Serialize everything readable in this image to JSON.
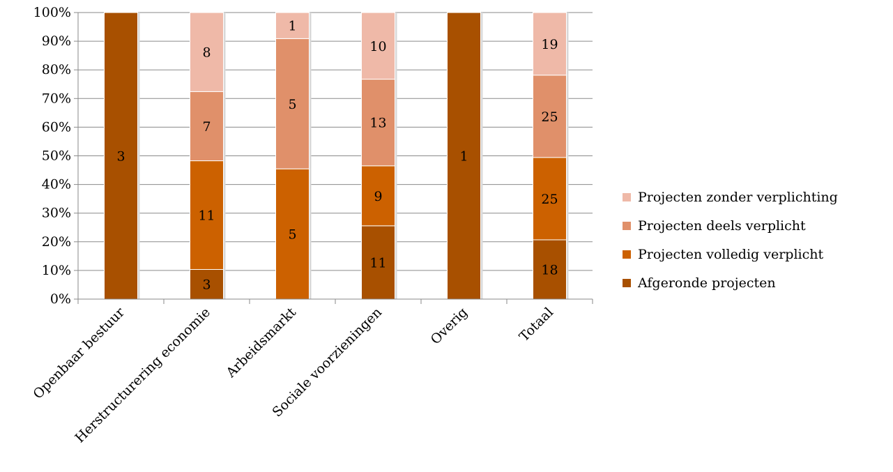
{
  "chart_data": {
    "type": "bar",
    "stacked": true,
    "percent_stacked": true,
    "categories": [
      "Openbaar bestuur",
      "Herstructurering economie",
      "Arbeidsmarkt",
      "Sociale voorzieningen",
      "Overig",
      "Totaal"
    ],
    "series": [
      {
        "name": "Afgeronde projecten",
        "values": [
          3,
          3,
          0,
          11,
          1,
          18
        ],
        "color": "#A85000"
      },
      {
        "name": "Projecten volledig verplicht",
        "values": [
          0,
          11,
          5,
          9,
          0,
          25
        ],
        "color": "#CC6100"
      },
      {
        "name": "Projecten deels verplicht",
        "values": [
          0,
          7,
          5,
          13,
          0,
          25
        ],
        "color": "#E0906A"
      },
      {
        "name": "Projecten zonder verplichting",
        "values": [
          0,
          8,
          1,
          10,
          0,
          19
        ],
        "color": "#EFB9A8"
      }
    ],
    "segment_labels": [
      [
        "3",
        "3",
        "",
        "11",
        "1",
        "18"
      ],
      [
        "",
        "11",
        "5",
        "9",
        "",
        "25"
      ],
      [
        "",
        "7",
        "5",
        "13",
        "",
        "25"
      ],
      [
        "",
        "8",
        "1",
        "10",
        "",
        "19"
      ]
    ],
    "yticks": [
      "0%",
      "10%",
      "20%",
      "30%",
      "40%",
      "50%",
      "60%",
      "70%",
      "80%",
      "90%",
      "100%"
    ],
    "ylim": [
      0,
      100
    ],
    "grid": true,
    "legend_position": "right",
    "legend_order": [
      3,
      2,
      1,
      0
    ],
    "title": "",
    "xlabel": "",
    "ylabel": ""
  }
}
